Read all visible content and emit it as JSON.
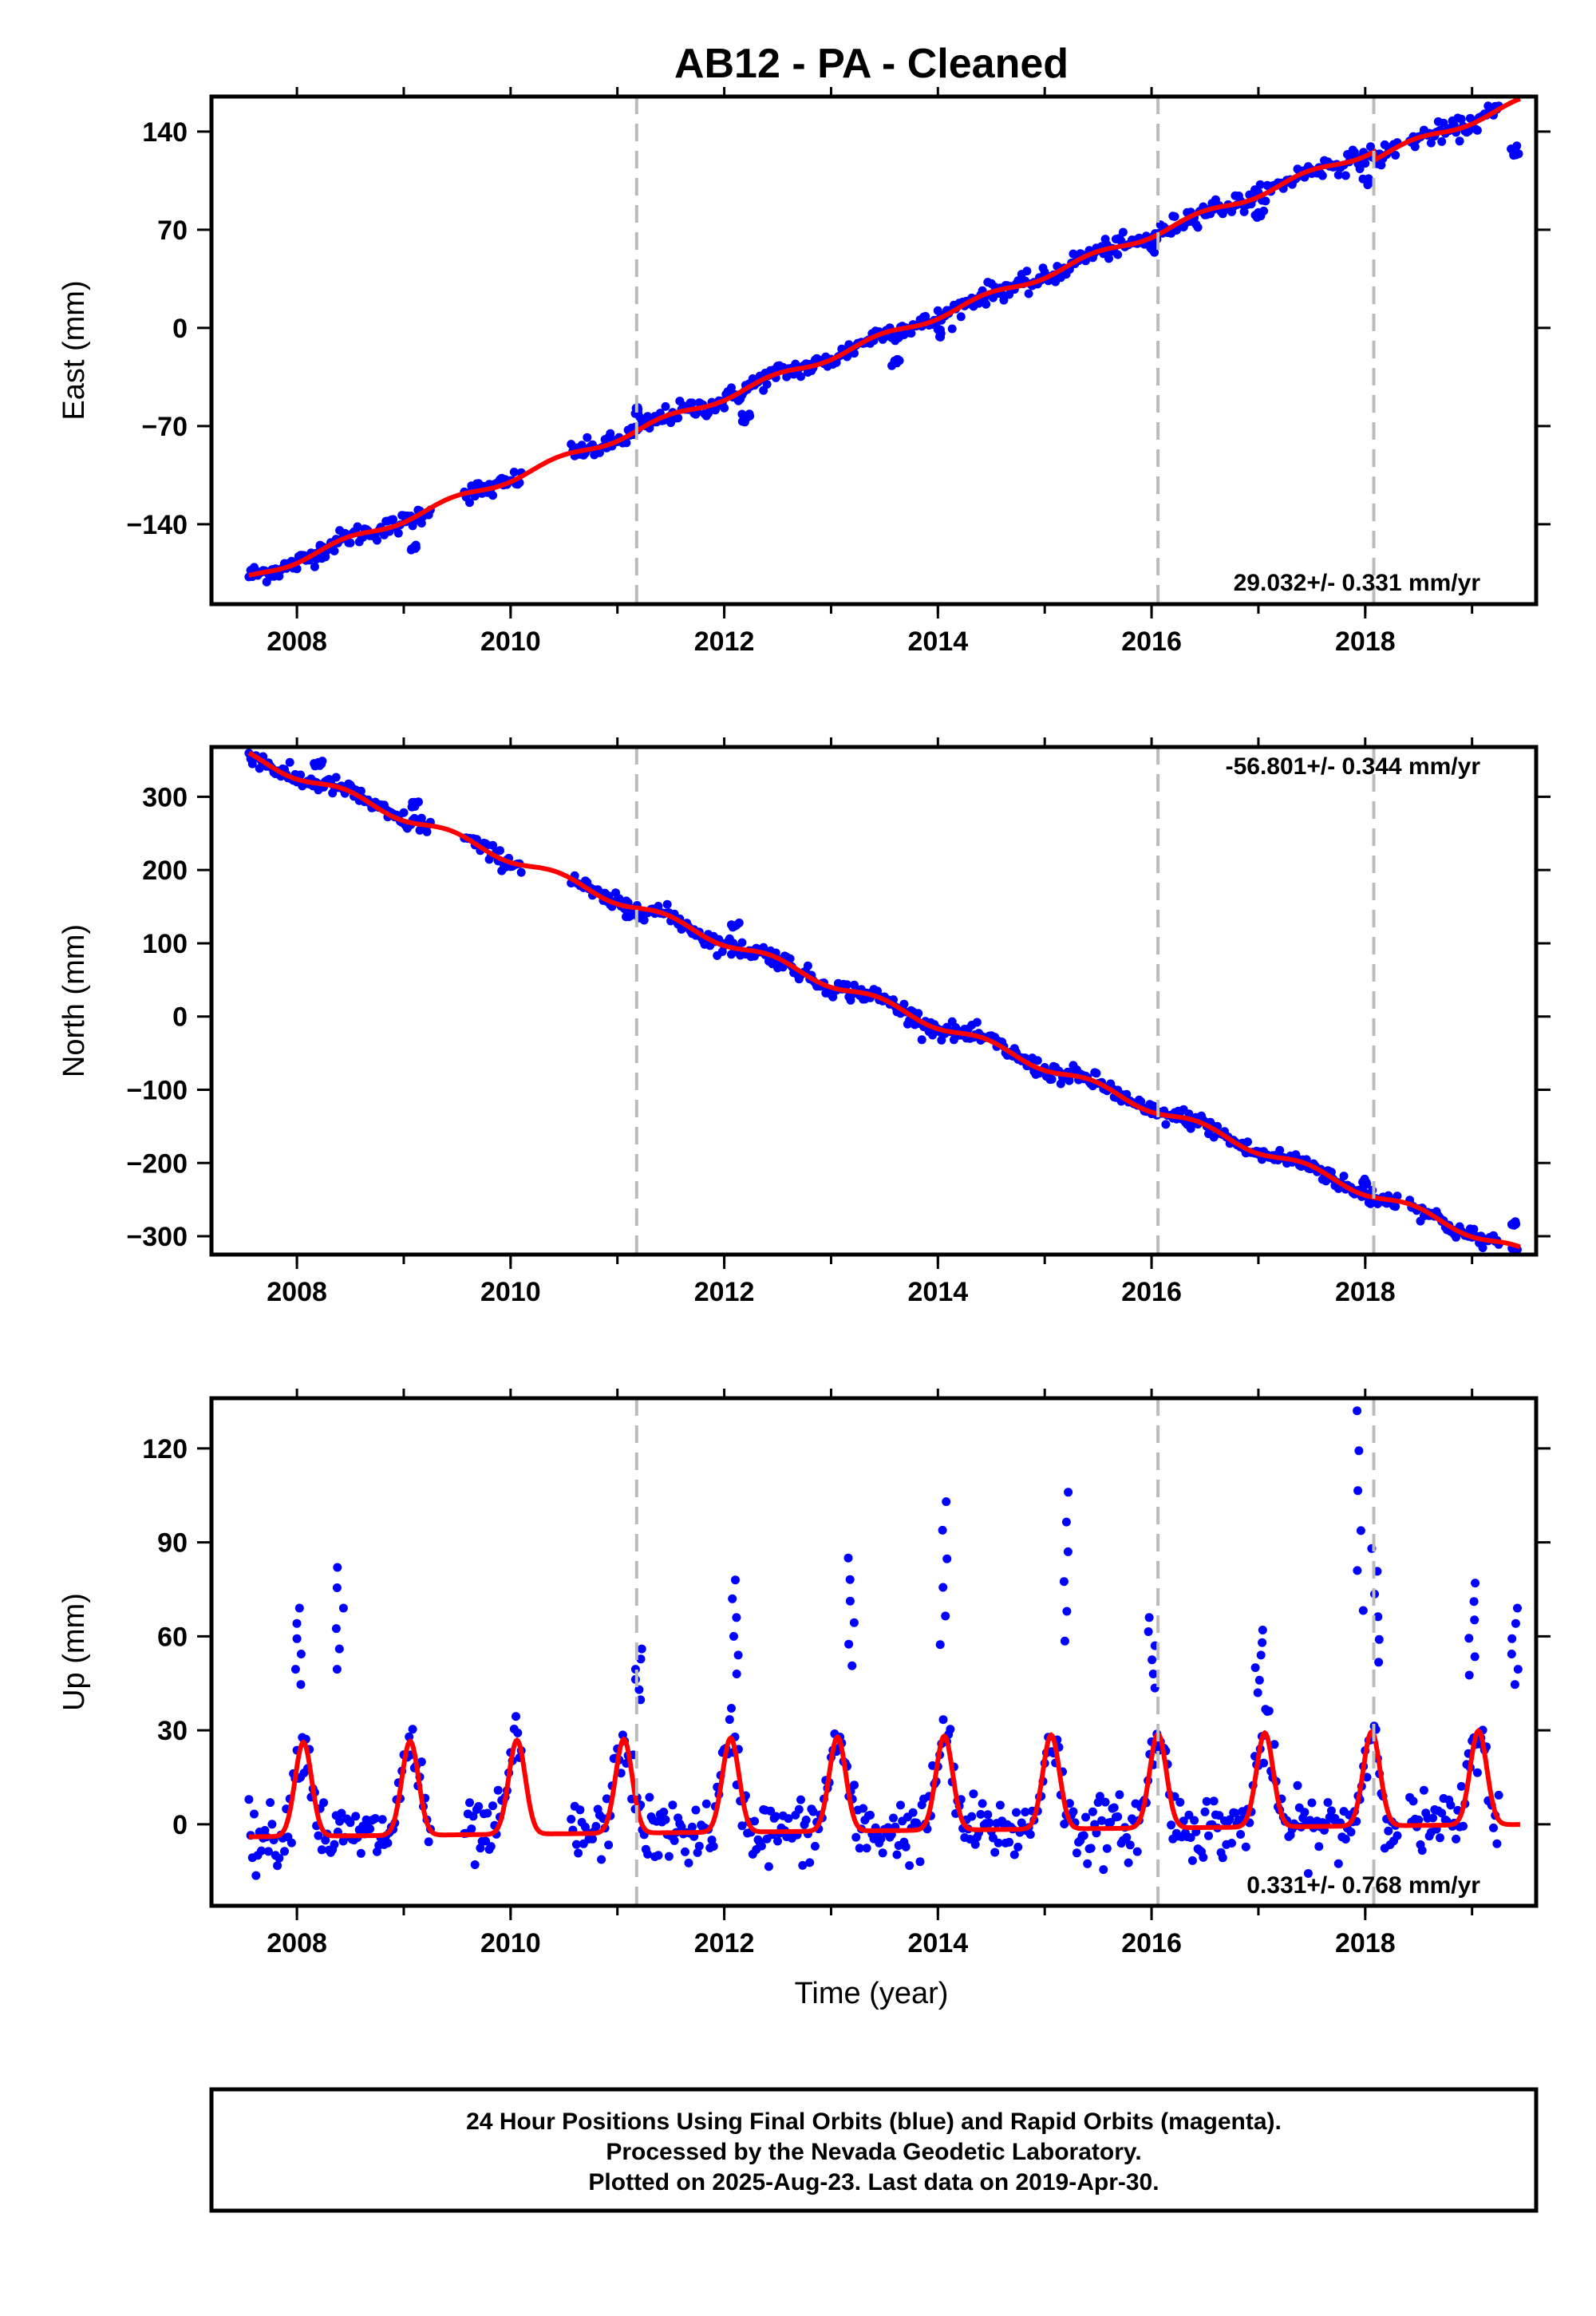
{
  "title": "AB12  - PA - Cleaned",
  "colors": {
    "data_points": "#0000ff",
    "model_fit": "#ff0000",
    "event_lines": "#bbbbbb",
    "frame": "#000000"
  },
  "footer": {
    "line1": "24 Hour Positions Using Final Orbits (blue) and Rapid Orbits (magenta).",
    "line2": "Processed by the Nevada Geodetic Laboratory.",
    "line3": "Plotted on 2025-Aug-23. Last data on 2019-Apr-30."
  },
  "chart_data": [
    {
      "type": "scatter",
      "name": "east",
      "ylabel": "East (mm)",
      "xlabel": "",
      "rate": "29.032+/- 0.331 mm/yr",
      "xlim": [
        2007.2,
        2019.6
      ],
      "ylim": [
        -197,
        165
      ],
      "x_ticks": [
        2008,
        2010,
        2012,
        2014,
        2016,
        2018
      ],
      "y_ticks": [
        140,
        70,
        0,
        -70,
        -140
      ],
      "y_tick_labels": [
        "140",
        "70",
        "0",
        "−70",
        "−140"
      ],
      "event_lines": [
        2011.18,
        2016.06,
        2018.08
      ],
      "model": {
        "origin_year": 2007.5,
        "offset": -180,
        "slope": 29.032,
        "annual_amp": 2.5,
        "steps": [
          {
            "at": 2018.08,
            "size": -6
          }
        ]
      },
      "anomalies": [
        {
          "x": 2008.2,
          "y": -157
        },
        {
          "x": 2009.1,
          "y": -158
        },
        {
          "x": 2011.2,
          "y": -60
        },
        {
          "x": 2012.2,
          "y": -64
        },
        {
          "x": 2013.6,
          "y": -26
        },
        {
          "x": 2014.0,
          "y": -5
        },
        {
          "x": 2016.0,
          "y": 57
        },
        {
          "x": 2017.0,
          "y": 82
        },
        {
          "x": 2018.0,
          "y": 104
        },
        {
          "x": 2019.4,
          "y": 126
        }
      ]
    },
    {
      "type": "scatter",
      "name": "north",
      "ylabel": "North (mm)",
      "xlabel": "",
      "rate": "-56.801+/- 0.344 mm/yr",
      "xlim": [
        2007.2,
        2019.6
      ],
      "ylim": [
        -325,
        368
      ],
      "x_ticks": [
        2008,
        2010,
        2012,
        2014,
        2016,
        2018
      ],
      "y_ticks": [
        300,
        200,
        100,
        0,
        -100,
        -200,
        -300
      ],
      "y_tick_labels": [
        "300",
        "200",
        "100",
        "0",
        "−100",
        "−200",
        "−300"
      ],
      "event_lines": [
        2011.18,
        2016.06,
        2018.08
      ],
      "model": {
        "origin_year": 2007.5,
        "offset": 358,
        "slope": -56.801,
        "annual_amp": 6,
        "steps": []
      },
      "anomalies": [
        {
          "x": 2008.2,
          "y": 345
        },
        {
          "x": 2009.1,
          "y": 290
        },
        {
          "x": 2011.1,
          "y": 140
        },
        {
          "x": 2012.1,
          "y": 125
        },
        {
          "x": 2015.2,
          "y": -85
        },
        {
          "x": 2018.0,
          "y": -225
        },
        {
          "x": 2019.4,
          "y": -282
        },
        {
          "x": 2019.4,
          "y": -316
        }
      ]
    },
    {
      "type": "scatter",
      "name": "up",
      "ylabel": "Up (mm)",
      "xlabel": "Time (year)",
      "rate": "0.331+/- 0.768 mm/yr",
      "xlim": [
        2007.2,
        2019.6
      ],
      "ylim": [
        -26,
        136
      ],
      "x_ticks": [
        2008,
        2010,
        2012,
        2014,
        2016,
        2018
      ],
      "y_ticks": [
        120,
        90,
        60,
        30,
        0
      ],
      "y_tick_labels": [
        "120",
        "90",
        "60",
        "30",
        "0"
      ],
      "event_lines": [
        2011.18,
        2016.06,
        2018.08
      ],
      "model": {
        "origin_year": 2007.5,
        "offset": 0,
        "slope": 0.331,
        "seasonal_amp": 30,
        "peak_phase": 0.06
      },
      "spikes": [
        {
          "x": 2008.4,
          "y": 82
        },
        {
          "x": 2008.0,
          "y": 69
        },
        {
          "x": 2011.2,
          "y": 56
        },
        {
          "x": 2012.1,
          "y": 78
        },
        {
          "x": 2013.2,
          "y": 85
        },
        {
          "x": 2014.05,
          "y": 103
        },
        {
          "x": 2015.2,
          "y": 106
        },
        {
          "x": 2016.0,
          "y": 66
        },
        {
          "x": 2017.0,
          "y": 62
        },
        {
          "x": 2017.95,
          "y": 132
        },
        {
          "x": 2018.1,
          "y": 88
        },
        {
          "x": 2019.0,
          "y": 77
        },
        {
          "x": 2019.4,
          "y": 69
        }
      ]
    }
  ]
}
